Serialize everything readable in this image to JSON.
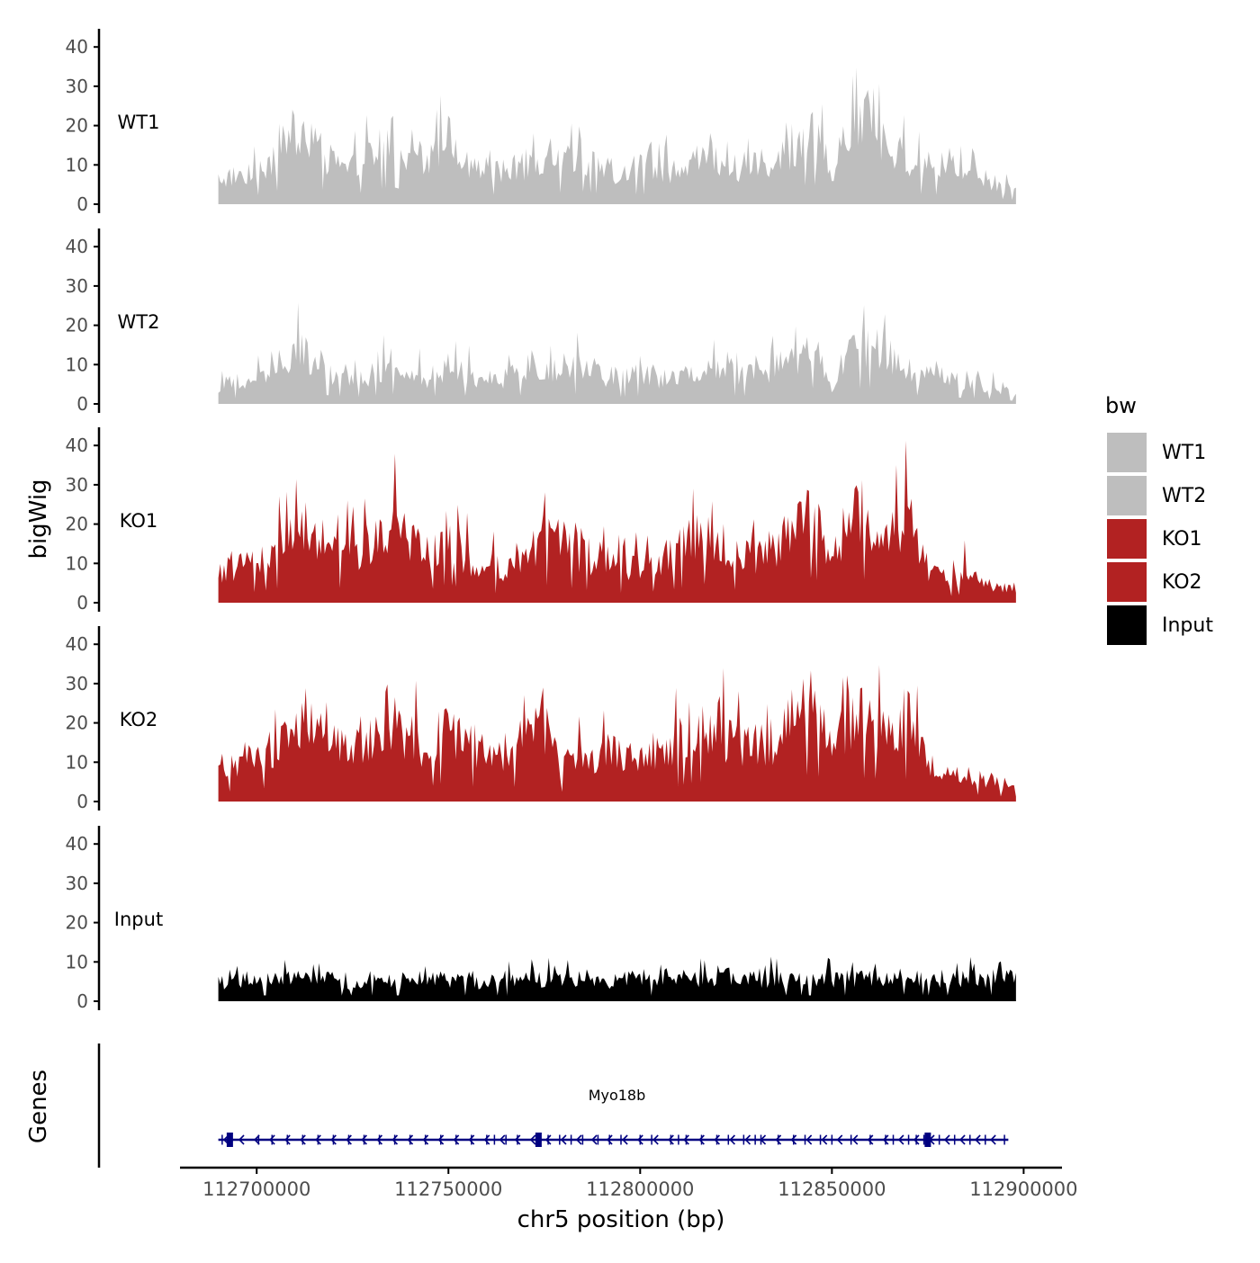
{
  "chart_data": {
    "type": "area",
    "title": "",
    "ylabel": "bigWig",
    "xlabel": "chr5 position (bp)",
    "chromosome": "chr5",
    "xlim": [
      112680000,
      112910000
    ],
    "data_range": [
      112690000,
      112898000
    ],
    "ylim": [
      0,
      45
    ],
    "yticks": [
      0,
      10,
      20,
      30,
      40
    ],
    "xticks": [
      112700000,
      112750000,
      112800000,
      112850000,
      112900000
    ],
    "xtick_labels": [
      "112700000",
      "112750000",
      "112800000",
      "112850000",
      "112900000"
    ],
    "colors": {
      "WT1": "#bebebe",
      "WT2": "#bebebe",
      "KO1": "#b22222",
      "KO2": "#b22222",
      "Input": "#000000",
      "gene": "#000080"
    },
    "legend": {
      "title": "bw",
      "position": "right",
      "entries": [
        "WT1",
        "WT2",
        "KO1",
        "KO2",
        "Input"
      ]
    },
    "tracks": [
      {
        "name": "WT1",
        "x": [
          112690000,
          112695000,
          112700000,
          112705000,
          112710000,
          112715000,
          112720000,
          112725000,
          112730000,
          112735000,
          112740000,
          112745000,
          112750000,
          112755000,
          112760000,
          112765000,
          112770000,
          112775000,
          112780000,
          112785000,
          112790000,
          112795000,
          112800000,
          112805000,
          112810000,
          112815000,
          112820000,
          112825000,
          112830000,
          112835000,
          112840000,
          112845000,
          112850000,
          112855000,
          112860000,
          112865000,
          112870000,
          112875000,
          112880000,
          112885000,
          112890000,
          112895000,
          112898000
        ],
        "values": [
          7,
          8,
          9,
          13,
          20,
          18,
          11,
          10,
          13,
          18,
          13,
          11,
          18,
          11,
          10,
          9,
          11,
          10,
          12,
          13,
          10,
          9,
          10,
          9,
          10,
          13,
          12,
          10,
          11,
          13,
          16,
          21,
          8,
          22,
          23,
          18,
          11,
          10,
          9,
          8,
          7,
          5,
          4
        ]
      },
      {
        "name": "WT2",
        "x": [
          112690000,
          112695000,
          112700000,
          112705000,
          112710000,
          112715000,
          112720000,
          112725000,
          112730000,
          112735000,
          112740000,
          112745000,
          112750000,
          112755000,
          112760000,
          112765000,
          112770000,
          112775000,
          112780000,
          112785000,
          112790000,
          112795000,
          112800000,
          112805000,
          112810000,
          112815000,
          112820000,
          112825000,
          112830000,
          112835000,
          112840000,
          112845000,
          112850000,
          112855000,
          112860000,
          112865000,
          112870000,
          112875000,
          112880000,
          112885000,
          112890000,
          112895000,
          112898000
        ],
        "values": [
          5,
          6,
          7,
          10,
          16,
          11,
          8,
          7,
          8,
          10,
          8,
          7,
          10,
          8,
          7,
          7,
          9,
          8,
          11,
          9,
          8,
          7,
          8,
          7,
          7,
          9,
          10,
          8,
          8,
          10,
          12,
          16,
          5,
          15,
          16,
          13,
          9,
          8,
          7,
          6,
          5,
          4,
          3
        ]
      },
      {
        "name": "KO1",
        "x": [
          112690000,
          112695000,
          112700000,
          112705000,
          112710000,
          112715000,
          112720000,
          112725000,
          112730000,
          112735000,
          112740000,
          112745000,
          112750000,
          112755000,
          112760000,
          112765000,
          112770000,
          112775000,
          112780000,
          112785000,
          112790000,
          112795000,
          112800000,
          112805000,
          112810000,
          112815000,
          112820000,
          112825000,
          112830000,
          112835000,
          112840000,
          112845000,
          112850000,
          112855000,
          112860000,
          112865000,
          112870000,
          112875000,
          112880000,
          112885000,
          112890000,
          112895000,
          112898000
        ],
        "values": [
          8,
          10,
          11,
          14,
          20,
          19,
          16,
          13,
          17,
          22,
          16,
          13,
          19,
          12,
          10,
          9,
          14,
          18,
          16,
          13,
          12,
          10,
          10,
          12,
          14,
          20,
          17,
          13,
          12,
          15,
          19,
          26,
          10,
          23,
          24,
          19,
          24,
          10,
          6,
          9,
          5,
          4,
          4
        ]
      },
      {
        "name": "KO2",
        "x": [
          112690000,
          112695000,
          112700000,
          112705000,
          112710000,
          112715000,
          112720000,
          112725000,
          112730000,
          112735000,
          112740000,
          112745000,
          112750000,
          112755000,
          112760000,
          112765000,
          112770000,
          112775000,
          112780000,
          112785000,
          112790000,
          112795000,
          112800000,
          112805000,
          112810000,
          112815000,
          112820000,
          112825000,
          112830000,
          112835000,
          112840000,
          112845000,
          112850000,
          112855000,
          112860000,
          112865000,
          112870000,
          112875000,
          112880000,
          112885000,
          112890000,
          112895000,
          112898000
        ],
        "values": [
          9,
          11,
          13,
          15,
          22,
          20,
          17,
          15,
          18,
          21,
          17,
          15,
          20,
          16,
          13,
          13,
          17,
          21,
          9,
          12,
          13,
          14,
          14,
          15,
          16,
          20,
          19,
          16,
          15,
          17,
          20,
          30,
          14,
          23,
          24,
          21,
          23,
          11,
          7,
          8,
          6,
          5,
          5
        ]
      },
      {
        "name": "Input",
        "x": [
          112690000,
          112695000,
          112700000,
          112705000,
          112710000,
          112715000,
          112720000,
          112725000,
          112730000,
          112735000,
          112740000,
          112745000,
          112750000,
          112755000,
          112760000,
          112765000,
          112770000,
          112775000,
          112780000,
          112785000,
          112790000,
          112795000,
          112800000,
          112805000,
          112810000,
          112815000,
          112820000,
          112825000,
          112830000,
          112835000,
          112840000,
          112845000,
          112850000,
          112855000,
          112860000,
          112865000,
          112870000,
          112875000,
          112880000,
          112885000,
          112890000,
          112895000,
          112898000
        ],
        "values": [
          5,
          6,
          6,
          6,
          6,
          6,
          6,
          5,
          6,
          6,
          6,
          6,
          6,
          6,
          5,
          6,
          6,
          6,
          6,
          6,
          5,
          6,
          6,
          6,
          7,
          6,
          7,
          7,
          6,
          6,
          6,
          6,
          6,
          6,
          6,
          6,
          7,
          6,
          6,
          6,
          6,
          7,
          6
        ]
      }
    ],
    "genes_track": {
      "label": "Genes",
      "genes": [
        {
          "name": "Myo18b",
          "start": 112690000,
          "end": 112896000,
          "strand": "-",
          "exons": [
            112691000,
            112693000,
            112700500,
            112704000,
            112708000,
            112712000,
            112716000,
            112720000,
            112724000,
            112728000,
            112732000,
            112736000,
            112740000,
            112744000,
            112748000,
            112752000,
            112756000,
            112760000,
            112762000,
            112765000,
            112768000,
            112773500,
            112774000,
            112776000,
            112779000,
            112782000,
            112785000,
            112789000,
            112792000,
            112795000,
            112800000,
            112803000,
            112808000,
            112810000,
            112812000,
            112816000,
            112820000,
            112823000,
            112827000,
            112830000,
            112831500,
            112836000,
            112840000,
            112843000,
            112847000,
            112850000,
            112855000,
            112860000,
            112864000,
            112866000,
            112870000,
            112872000,
            112874000,
            112875000,
            112878000,
            112882000,
            112886000,
            112890000,
            112895000
          ]
        }
      ]
    }
  }
}
